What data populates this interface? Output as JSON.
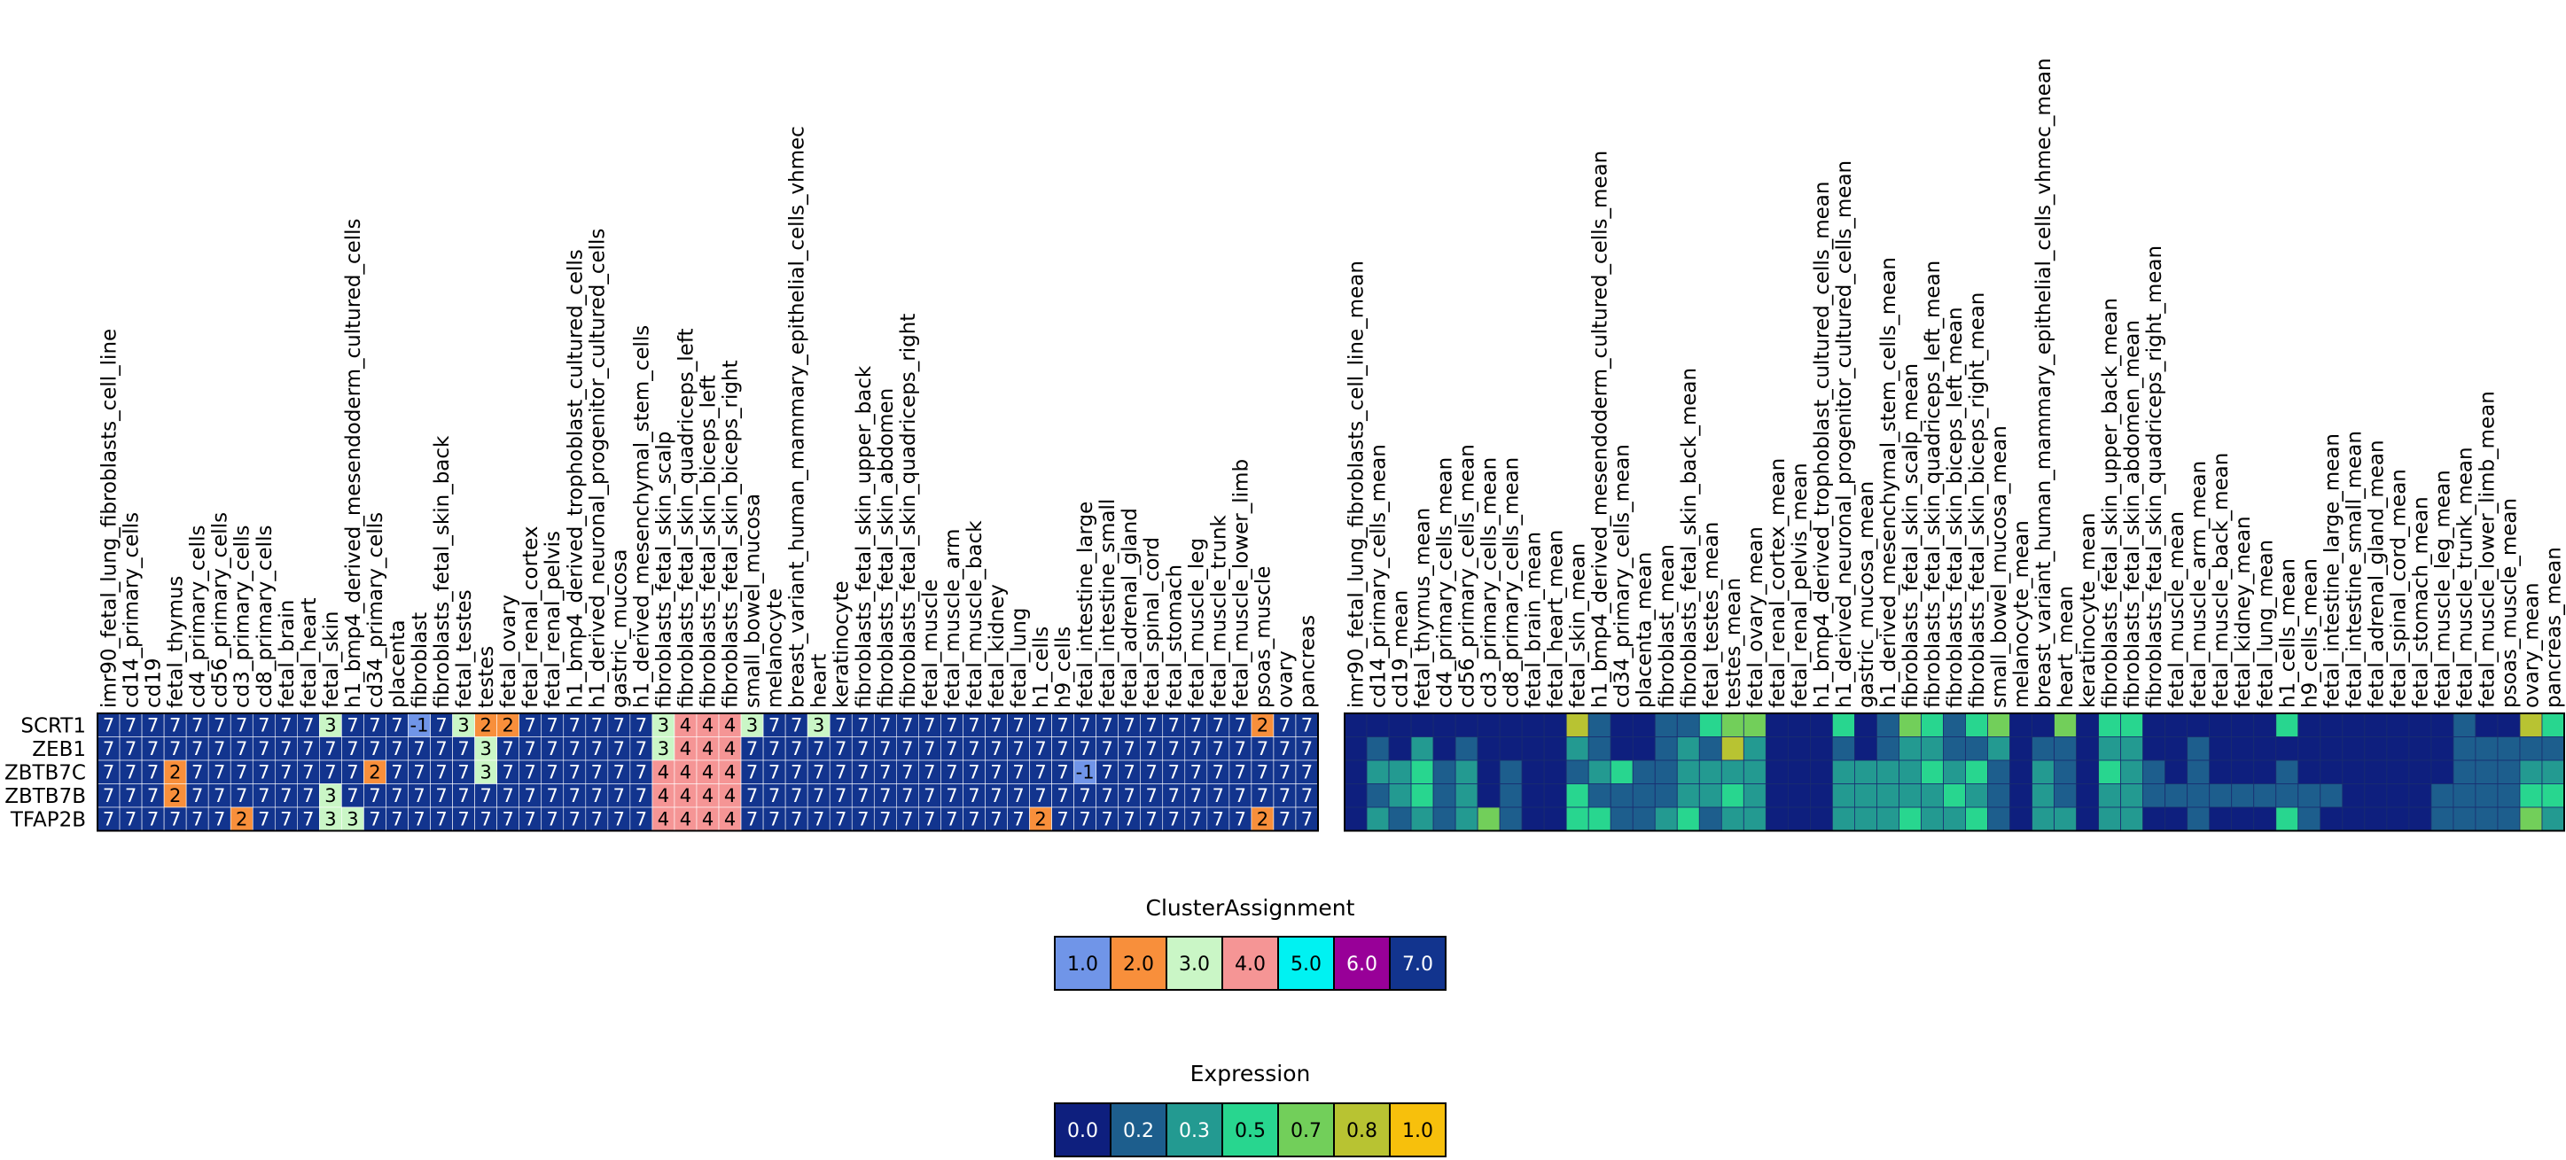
{
  "chart_data": {
    "type": "heatmap",
    "genes": [
      "SCRT1",
      "ZEB1",
      "ZBTB7C",
      "ZBTB7B",
      "TFAP2B"
    ],
    "cluster_heatmap": {
      "columns": [
        "imr90_fetal_lung_fibroblasts_cell_line",
        "cd14_primary_cells",
        "cd19",
        "fetal_thymus",
        "cd4_primary_cells",
        "cd56_primary_cells",
        "cd3_primary_cells",
        "cd8_primary_cells",
        "fetal_brain",
        "fetal_heart",
        "fetal_skin",
        "h1_bmp4_derived_mesendoderm_cultured_cells",
        "cd34_primary_cells",
        "placenta",
        "fibroblast",
        "fibroblasts_fetal_skin_back",
        "fetal_testes",
        "testes",
        "fetal_ovary",
        "fetal_renal_cortex",
        "fetal_renal_pelvis",
        "h1_bmp4_derived_trophoblast_cultured_cells",
        "h1_derived_neuronal_progenitor_cultured_cells",
        "gastric_mucosa",
        "h1_derived_mesenchymal_stem_cells",
        "fibroblasts_fetal_skin_scalp",
        "fibroblasts_fetal_skin_quadriceps_left",
        "fibroblasts_fetal_skin_biceps_left",
        "fibroblasts_fetal_skin_biceps_right",
        "small_bowel_mucosa",
        "melanocyte",
        "breast_variant_human_mammary_epithelial_cells_vhmec",
        "heart",
        "keratinocyte",
        "fibroblasts_fetal_skin_upper_back",
        "fibroblasts_fetal_skin_abdomen",
        "fibroblasts_fetal_skin_quadriceps_right",
        "fetal_muscle",
        "fetal_muscle_arm",
        "fetal_muscle_back",
        "fetal_kidney",
        "fetal_lung",
        "h1_cells",
        "h9_cells",
        "fetal_intestine_large",
        "fetal_intestine_small",
        "fetal_adrenal_gland",
        "fetal_spinal_cord",
        "fetal_stomach",
        "fetal_muscle_leg",
        "fetal_muscle_trunk",
        "fetal_muscle_lower_limb",
        "psoas_muscle",
        "ovary",
        "pancreas"
      ],
      "values": [
        [
          7,
          7,
          7,
          7,
          7,
          7,
          7,
          7,
          7,
          7,
          3,
          7,
          7,
          7,
          -1,
          7,
          3,
          2,
          2,
          7,
          7,
          7,
          7,
          7,
          7,
          3,
          4,
          4,
          4,
          3,
          7,
          7,
          3,
          7,
          7,
          7,
          7,
          7,
          7,
          7,
          7,
          7,
          7,
          7,
          7,
          7,
          7,
          7,
          7,
          7,
          7,
          7,
          2,
          7,
          7
        ],
        [
          7,
          7,
          7,
          7,
          7,
          7,
          7,
          7,
          7,
          7,
          7,
          7,
          7,
          7,
          7,
          7,
          7,
          3,
          7,
          7,
          7,
          7,
          7,
          7,
          7,
          3,
          4,
          4,
          4,
          7,
          7,
          7,
          7,
          7,
          7,
          7,
          7,
          7,
          7,
          7,
          7,
          7,
          7,
          7,
          7,
          7,
          7,
          7,
          7,
          7,
          7,
          7,
          7,
          7,
          7
        ],
        [
          7,
          7,
          7,
          2,
          7,
          7,
          7,
          7,
          7,
          7,
          7,
          7,
          2,
          7,
          7,
          7,
          7,
          3,
          7,
          7,
          7,
          7,
          7,
          7,
          7,
          4,
          4,
          4,
          4,
          7,
          7,
          7,
          7,
          7,
          7,
          7,
          7,
          7,
          7,
          7,
          7,
          7,
          7,
          7,
          -1,
          7,
          7,
          7,
          7,
          7,
          7,
          7,
          7,
          7,
          7
        ],
        [
          7,
          7,
          7,
          2,
          7,
          7,
          7,
          7,
          7,
          7,
          3,
          7,
          7,
          7,
          7,
          7,
          7,
          7,
          7,
          7,
          7,
          7,
          7,
          7,
          7,
          4,
          4,
          4,
          4,
          7,
          7,
          7,
          7,
          7,
          7,
          7,
          7,
          7,
          7,
          7,
          7,
          7,
          7,
          7,
          7,
          7,
          7,
          7,
          7,
          7,
          7,
          7,
          7,
          7,
          7
        ],
        [
          7,
          7,
          7,
          7,
          7,
          7,
          2,
          7,
          7,
          7,
          3,
          3,
          7,
          7,
          7,
          7,
          7,
          7,
          7,
          7,
          7,
          7,
          7,
          7,
          7,
          4,
          4,
          4,
          4,
          7,
          7,
          7,
          7,
          7,
          7,
          7,
          7,
          7,
          7,
          7,
          7,
          7,
          2,
          7,
          7,
          7,
          7,
          7,
          7,
          7,
          7,
          7,
          2,
          7,
          7
        ]
      ]
    },
    "expression_heatmap": {
      "columns": [
        "imr90_fetal_lung_fibroblasts_cell_line_mean",
        "cd14_primary_cells_mean",
        "cd19_mean",
        "fetal_thymus_mean",
        "cd4_primary_cells_mean",
        "cd56_primary_cells_mean",
        "cd3_primary_cells_mean",
        "cd8_primary_cells_mean",
        "fetal_brain_mean",
        "fetal_heart_mean",
        "fetal_skin_mean",
        "h1_bmp4_derived_mesendoderm_cultured_cells_mean",
        "cd34_primary_cells_mean",
        "placenta_mean",
        "fibroblast_mean",
        "fibroblasts_fetal_skin_back_mean",
        "fetal_testes_mean",
        "testes_mean",
        "fetal_ovary_mean",
        "fetal_renal_cortex_mean",
        "fetal_renal_pelvis_mean",
        "h1_bmp4_derived_trophoblast_cultured_cells_mean",
        "h1_derived_neuronal_progenitor_cultured_cells_mean",
        "gastric_mucosa_mean",
        "h1_derived_mesenchymal_stem_cells_mean",
        "fibroblasts_fetal_skin_scalp_mean",
        "fibroblasts_fetal_skin_quadriceps_left_mean",
        "fibroblasts_fetal_skin_biceps_left_mean",
        "fibroblasts_fetal_skin_biceps_right_mean",
        "small_bowel_mucosa_mean",
        "melanocyte_mean",
        "breast_variant_human_mammary_epithelial_cells_vhmec_mean",
        "heart_mean",
        "keratinocyte_mean",
        "fibroblasts_fetal_skin_upper_back_mean",
        "fibroblasts_fetal_skin_abdomen_mean",
        "fibroblasts_fetal_skin_quadriceps_right_mean",
        "fetal_muscle_mean",
        "fetal_muscle_arm_mean",
        "fetal_muscle_back_mean",
        "fetal_kidney_mean",
        "fetal_lung_mean",
        "h1_cells_mean",
        "h9_cells_mean",
        "fetal_intestine_large_mean",
        "fetal_intestine_small_mean",
        "fetal_adrenal_gland_mean",
        "fetal_spinal_cord_mean",
        "fetal_stomach_mean",
        "fetal_muscle_leg_mean",
        "fetal_muscle_trunk_mean",
        "fetal_muscle_lower_limb_mean",
        "psoas_muscle_mean",
        "ovary_mean",
        "pancreas_mean"
      ],
      "values": [
        [
          0.05,
          0.05,
          0.05,
          0.05,
          0.05,
          0.1,
          0.05,
          0.05,
          0.05,
          0.05,
          0.8,
          0.15,
          0.1,
          0.05,
          0.15,
          0.15,
          0.45,
          0.75,
          0.65,
          0.1,
          0.05,
          0.05,
          0.45,
          0.1,
          0.15,
          0.75,
          0.5,
          0.2,
          0.45,
          0.65,
          0.1,
          0.1,
          0.75,
          0.1,
          0.5,
          0.45,
          0.1,
          0.1,
          0.1,
          0.05,
          0.05,
          0.05,
          0.45,
          0.05,
          0.05,
          0.05,
          0.1,
          0.05,
          0.05,
          0.05,
          0.15,
          0.1,
          0.1,
          0.8,
          0.5
        ],
        [
          0.05,
          0.15,
          0.1,
          0.3,
          0.05,
          0.15,
          0.05,
          0.05,
          0.05,
          0.05,
          0.35,
          0.15,
          0.05,
          0.05,
          0.25,
          0.3,
          0.25,
          0.9,
          0.3,
          0.05,
          0.05,
          0.05,
          0.15,
          0.1,
          0.15,
          0.35,
          0.3,
          0.25,
          0.15,
          0.3,
          0.1,
          0.15,
          0.2,
          0.05,
          0.3,
          0.3,
          0.1,
          0.1,
          0.15,
          0.1,
          0.1,
          0.1,
          0.1,
          0.1,
          0.05,
          0.05,
          0.1,
          0.1,
          0.05,
          0.1,
          0.2,
          0.15,
          0.15,
          0.2,
          0.2
        ],
        [
          0.1,
          0.3,
          0.3,
          0.6,
          0.15,
          0.3,
          0.1,
          0.15,
          0.05,
          0.1,
          0.25,
          0.3,
          0.6,
          0.15,
          0.25,
          0.3,
          0.3,
          0.3,
          0.35,
          0.1,
          0.1,
          0.1,
          0.3,
          0.35,
          0.35,
          0.3,
          0.5,
          0.35,
          0.4,
          0.15,
          0.1,
          0.35,
          0.25,
          0.1,
          0.4,
          0.3,
          0.15,
          0.1,
          0.15,
          0.1,
          0.1,
          0.1,
          0.15,
          0.1,
          0.1,
          0.1,
          0.1,
          0.05,
          0.05,
          0.1,
          0.15,
          0.15,
          0.15,
          0.35,
          0.3
        ],
        [
          0.1,
          0.25,
          0.3,
          0.55,
          0.15,
          0.3,
          0.1,
          0.15,
          0.05,
          0.1,
          0.55,
          0.25,
          0.25,
          0.15,
          0.25,
          0.3,
          0.3,
          0.45,
          0.35,
          0.1,
          0.1,
          0.1,
          0.3,
          0.3,
          0.3,
          0.35,
          0.3,
          0.6,
          0.3,
          0.2,
          0.1,
          0.3,
          0.25,
          0.1,
          0.35,
          0.35,
          0.15,
          0.15,
          0.2,
          0.15,
          0.15,
          0.15,
          0.2,
          0.15,
          0.15,
          0.1,
          0.1,
          0.05,
          0.1,
          0.15,
          0.2,
          0.2,
          0.2,
          0.45,
          0.4
        ],
        [
          0.1,
          0.3,
          0.2,
          0.3,
          0.15,
          0.35,
          0.65,
          0.15,
          0.05,
          0.1,
          0.6,
          0.6,
          0.2,
          0.15,
          0.3,
          0.45,
          0.25,
          0.35,
          0.3,
          0.1,
          0.1,
          0.1,
          0.35,
          0.3,
          0.35,
          0.4,
          0.35,
          0.35,
          0.6,
          0.15,
          0.1,
          0.3,
          0.35,
          0.1,
          0.35,
          0.35,
          0.1,
          0.1,
          0.15,
          0.1,
          0.1,
          0.1,
          0.6,
          0.15,
          0.1,
          0.1,
          0.1,
          0.05,
          0.1,
          0.15,
          0.2,
          0.2,
          0.2,
          0.7,
          0.35
        ]
      ]
    },
    "legends": [
      {
        "title": "ClusterAssignment",
        "labels": [
          "1.0",
          "2.0",
          "3.0",
          "4.0",
          "5.0",
          "6.0",
          "7.0"
        ],
        "colors": [
          "#7095e8",
          "#f88f3b",
          "#caf6c6",
          "#f59595",
          "#00f2f2",
          "#980098",
          "#12348e"
        ]
      },
      {
        "title": "Expression",
        "labels": [
          "0.0",
          "0.2",
          "0.3",
          "0.5",
          "0.7",
          "0.8",
          "1.0"
        ],
        "colors": [
          "#0e1f7e",
          "#1d5e8d",
          "#239a91",
          "#28d68f",
          "#72cf5a",
          "#b8c332",
          "#f7c00c"
        ]
      }
    ]
  }
}
